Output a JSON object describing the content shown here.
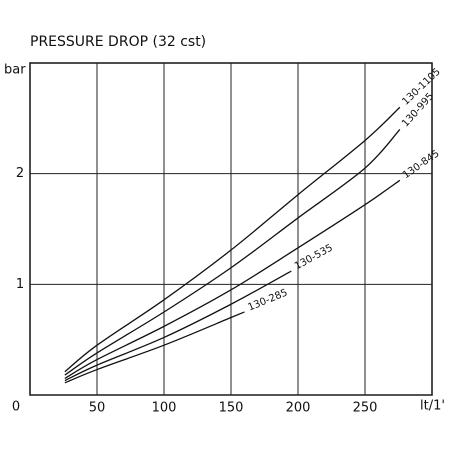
{
  "chart_data": {
    "type": "line",
    "title": "PRESSURE DROP (32 cst)",
    "y_label": "bar",
    "x_label": "lt/1'",
    "xlim": [
      0,
      300
    ],
    "ylim": [
      0,
      3
    ],
    "xticks": [
      50,
      100,
      150,
      200,
      250
    ],
    "yticks": [
      0,
      1,
      2
    ],
    "grid": true,
    "series": [
      {
        "name": "130-1105",
        "color": "#111111",
        "x": [
          26,
          50,
          100,
          150,
          200,
          250,
          276
        ],
        "values": [
          0.21,
          0.45,
          0.86,
          1.31,
          1.81,
          2.3,
          2.6
        ]
      },
      {
        "name": "130-995",
        "color": "#111111",
        "x": [
          26,
          50,
          100,
          150,
          200,
          250,
          276
        ],
        "values": [
          0.18,
          0.38,
          0.75,
          1.15,
          1.6,
          2.05,
          2.4
        ]
      },
      {
        "name": "130-845",
        "color": "#111111",
        "x": [
          26,
          50,
          100,
          150,
          200,
          250,
          276
        ],
        "values": [
          0.15,
          0.32,
          0.62,
          0.95,
          1.33,
          1.72,
          1.94
        ]
      },
      {
        "name": "130-535",
        "color": "#111111",
        "x": [
          26,
          50,
          100,
          150,
          195
        ],
        "values": [
          0.13,
          0.27,
          0.52,
          0.82,
          1.12
        ]
      },
      {
        "name": "130-285",
        "color": "#111111",
        "x": [
          26,
          50,
          100,
          150,
          160
        ],
        "values": [
          0.11,
          0.23,
          0.45,
          0.7,
          0.75
        ]
      }
    ]
  }
}
